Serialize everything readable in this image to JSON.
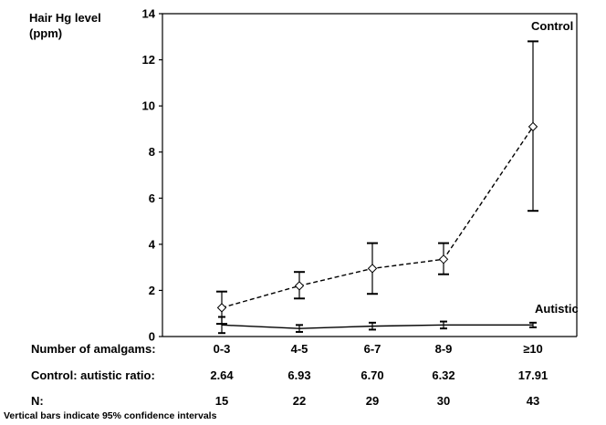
{
  "chart_data": {
    "type": "line",
    "ylabel": "Hair Hg level\n(ppm)",
    "ylim": [
      0,
      14
    ],
    "yticks": [
      0,
      2,
      4,
      6,
      8,
      10,
      12,
      14
    ],
    "categories": [
      "0-3",
      "4-5",
      "6-7",
      "8-9",
      "≥10"
    ],
    "series": [
      {
        "name": "Control",
        "style": "dashed-diamond",
        "values": [
          1.25,
          2.2,
          2.95,
          3.35,
          9.1
        ],
        "ci_low": [
          0.55,
          1.65,
          1.85,
          2.7,
          5.45
        ],
        "ci_high": [
          1.95,
          2.8,
          4.05,
          4.05,
          12.8
        ]
      },
      {
        "name": "Autistic",
        "style": "solid",
        "values": [
          0.5,
          0.35,
          0.45,
          0.5,
          0.5
        ],
        "ci_low": [
          0.15,
          0.2,
          0.3,
          0.35,
          0.4
        ],
        "ci_high": [
          0.85,
          0.5,
          0.6,
          0.65,
          0.6
        ]
      }
    ],
    "legend_placement": "series labels at line ends"
  },
  "table": {
    "amalgams_label": "Number of amalgams:",
    "ratio_label": "Control: autistic ratio:",
    "ratio_values": [
      "2.64",
      "6.93",
      "6.70",
      "6.32",
      "17.91"
    ],
    "n_label": "N:",
    "n_values": [
      "15",
      "22",
      "29",
      "30",
      "43"
    ]
  },
  "footnote": "Vertical bars indicate 95% confidence intervals"
}
